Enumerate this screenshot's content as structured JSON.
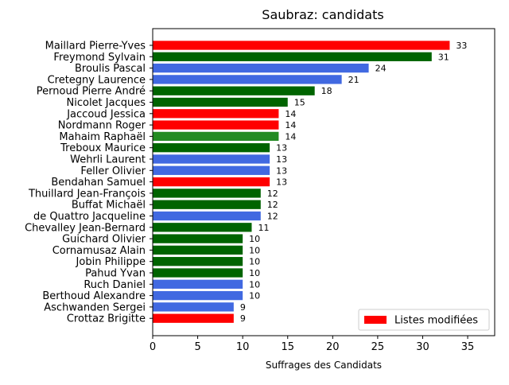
{
  "chart_data": {
    "type": "bar",
    "orientation": "horizontal",
    "title": "Saubraz: candidats",
    "xlabel": "Suffrages des Candidats",
    "ylabel": "",
    "xlim": [
      0,
      38
    ],
    "xticks": [
      0,
      5,
      10,
      15,
      20,
      25,
      30,
      35
    ],
    "grid": false,
    "legend_position": "bottom-right",
    "colors": {
      "red": "#ff0000",
      "darkgreen": "#006400",
      "forestgreen": "#228b22",
      "royalblue": "#4169e1"
    },
    "bars": [
      {
        "label": "Maillard Pierre-Yves",
        "value": 33,
        "color": "#ff0000"
      },
      {
        "label": "Freymond Sylvain",
        "value": 31,
        "color": "#006400"
      },
      {
        "label": "Broulis Pascal",
        "value": 24,
        "color": "#4169e1"
      },
      {
        "label": "Cretegny Laurence",
        "value": 21,
        "color": "#4169e1"
      },
      {
        "label": "Pernoud Pierre André",
        "value": 18,
        "color": "#006400"
      },
      {
        "label": "Nicolet Jacques",
        "value": 15,
        "color": "#006400"
      },
      {
        "label": "Jaccoud Jessica",
        "value": 14,
        "color": "#ff0000"
      },
      {
        "label": "Nordmann Roger",
        "value": 14,
        "color": "#ff0000"
      },
      {
        "label": "Mahaim Raphaël",
        "value": 14,
        "color": "#228b22"
      },
      {
        "label": "Treboux Maurice",
        "value": 13,
        "color": "#006400"
      },
      {
        "label": "Wehrli Laurent",
        "value": 13,
        "color": "#4169e1"
      },
      {
        "label": "Feller Olivier",
        "value": 13,
        "color": "#4169e1"
      },
      {
        "label": "Bendahan Samuel",
        "value": 13,
        "color": "#ff0000"
      },
      {
        "label": "Thuillard Jean-François",
        "value": 12,
        "color": "#006400"
      },
      {
        "label": "Buffat Michaël",
        "value": 12,
        "color": "#006400"
      },
      {
        "label": "de Quattro Jacqueline",
        "value": 12,
        "color": "#4169e1"
      },
      {
        "label": "Chevalley Jean-Bernard",
        "value": 11,
        "color": "#006400"
      },
      {
        "label": "Guichard Olivier",
        "value": 10,
        "color": "#006400"
      },
      {
        "label": "Cornamusaz Alain",
        "value": 10,
        "color": "#006400"
      },
      {
        "label": "Jobin Philippe",
        "value": 10,
        "color": "#006400"
      },
      {
        "label": "Pahud Yvan",
        "value": 10,
        "color": "#006400"
      },
      {
        "label": "Ruch Daniel",
        "value": 10,
        "color": "#4169e1"
      },
      {
        "label": "Berthoud Alexandre",
        "value": 10,
        "color": "#4169e1"
      },
      {
        "label": "Aschwanden Sergei",
        "value": 9,
        "color": "#4169e1"
      },
      {
        "label": "Crottaz Brigitte",
        "value": 9,
        "color": "#ff0000"
      }
    ],
    "legend": [
      {
        "label": "Listes modifiées",
        "color": "#ff0000"
      }
    ]
  }
}
